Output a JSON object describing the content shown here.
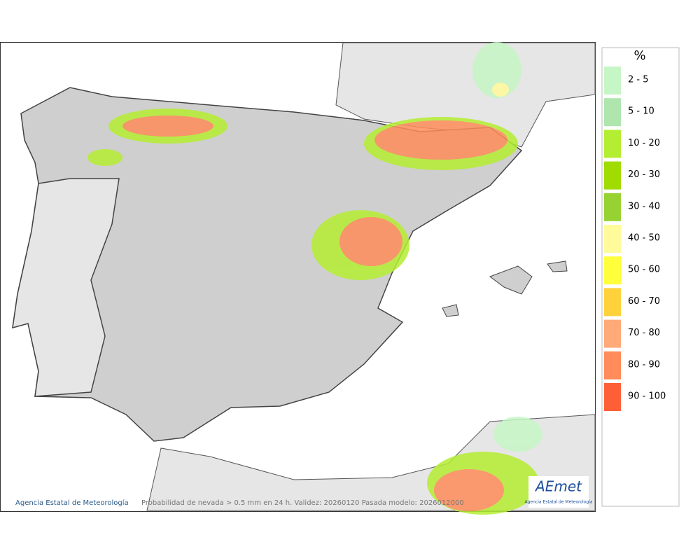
{
  "legend": {
    "title": "%",
    "items": [
      {
        "label": "2 - 5",
        "color": "#c6f6c6"
      },
      {
        "label": "5 - 10",
        "color": "#aee6ae"
      },
      {
        "label": "10 - 20",
        "color": "#b4ee32"
      },
      {
        "label": "20 - 30",
        "color": "#a0dc00"
      },
      {
        "label": "30 - 40",
        "color": "#96d232"
      },
      {
        "label": "40 - 50",
        "color": "#fffa9a"
      },
      {
        "label": "50 - 60",
        "color": "#ffff3c"
      },
      {
        "label": "60 - 70",
        "color": "#ffd23c"
      },
      {
        "label": "70 - 80",
        "color": "#ffaa78"
      },
      {
        "label": "80 - 90",
        "color": "#ff8c5a"
      },
      {
        "label": "90 - 100",
        "color": "#ff5f37"
      }
    ]
  },
  "footer": {
    "credit": "Agencia Estatal de Meteorología",
    "caption": "Probabilidad de nevada > 0.5 mm en 24 h. Validez: 20260120 Pasada modelo: 2026012000"
  },
  "logo": {
    "name": "AEmet",
    "subtitle": "Agencia Estatal de Meteorología"
  }
}
